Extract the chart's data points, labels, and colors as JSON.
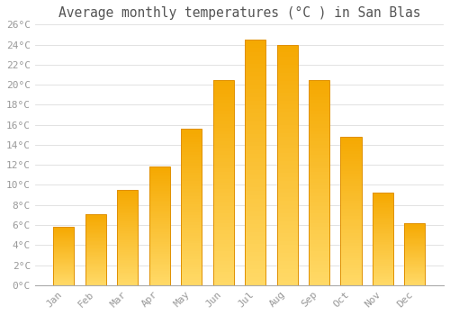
{
  "months": [
    "Jan",
    "Feb",
    "Mar",
    "Apr",
    "May",
    "Jun",
    "Jul",
    "Aug",
    "Sep",
    "Oct",
    "Nov",
    "Dec"
  ],
  "values": [
    5.8,
    7.1,
    9.5,
    11.8,
    15.6,
    20.5,
    24.5,
    24.0,
    20.5,
    14.8,
    9.2,
    6.2
  ],
  "title": "Average monthly temperatures (°C ) in San Blas",
  "bar_color_top": "#F5A800",
  "bar_color_bottom": "#FFD966",
  "bar_edge_color": "#E09000",
  "ylim": [
    0,
    26
  ],
  "yticks": [
    0,
    2,
    4,
    6,
    8,
    10,
    12,
    14,
    16,
    18,
    20,
    22,
    24,
    26
  ],
  "ytick_labels": [
    "0°C",
    "2°C",
    "4°C",
    "6°C",
    "8°C",
    "10°C",
    "12°C",
    "14°C",
    "16°C",
    "18°C",
    "20°C",
    "22°C",
    "24°C",
    "26°C"
  ],
  "background_color": "#ffffff",
  "grid_color": "#dddddd",
  "title_fontsize": 10.5,
  "tick_fontsize": 8,
  "tick_color": "#999999",
  "font_family": "monospace",
  "fig_width": 5.0,
  "fig_height": 3.5,
  "bar_width": 0.65
}
